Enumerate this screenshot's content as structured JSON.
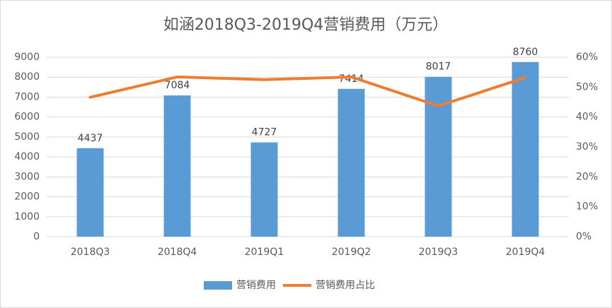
{
  "chart_data": {
    "type": "combo",
    "title": "如涵2018Q3-2019Q4营销费用（万元）",
    "categories": [
      "2018Q3",
      "2018Q4",
      "2019Q1",
      "2019Q2",
      "2019Q3",
      "2019Q4"
    ],
    "series": [
      {
        "name": "营销费用",
        "kind": "bar",
        "color": "#5b9bd5",
        "values": [
          4437,
          7084,
          4727,
          7414,
          8017,
          8760
        ]
      },
      {
        "name": "营销费用占比",
        "kind": "line",
        "axis": "y2",
        "color": "#ed7d31",
        "values": [
          46.6,
          53.4,
          52.5,
          53.4,
          43.7,
          53.2
        ]
      }
    ],
    "ylim": [
      0,
      9000
    ],
    "yticks": [
      0,
      1000,
      2000,
      3000,
      4000,
      5000,
      6000,
      7000,
      8000,
      9000
    ],
    "y2lim": [
      0,
      60
    ],
    "y2ticks": [
      {
        "value": 0,
        "label": "0%"
      },
      {
        "value": 10,
        "label": "10%"
      },
      {
        "value": 20,
        "label": "20%"
      },
      {
        "value": 30,
        "label": "30%"
      },
      {
        "value": 40,
        "label": "40%"
      },
      {
        "value": 50,
        "label": "50%"
      },
      {
        "value": 60,
        "label": "60%"
      }
    ],
    "grid": true,
    "legend": "bottom"
  }
}
